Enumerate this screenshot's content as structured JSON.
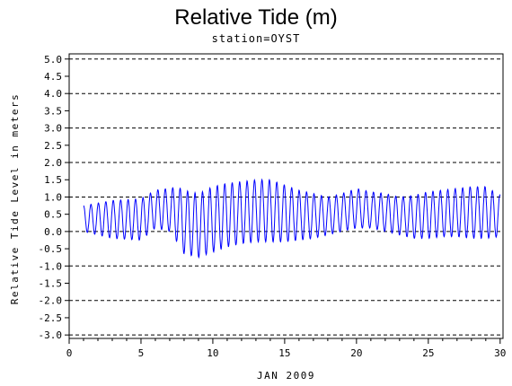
{
  "chart_data": {
    "type": "line",
    "title": "Relative Tide (m)",
    "subtitle": "station=OYST",
    "xlabel": "JAN 2009",
    "ylabel": "Relative Tide Level in meters",
    "xlim": [
      0,
      30.2
    ],
    "ylim": [
      -3.0,
      5.0
    ],
    "x_ticks": [
      0,
      5,
      10,
      15,
      20,
      25,
      30
    ],
    "y_ticks": [
      5.0,
      4.5,
      4.0,
      3.5,
      3.0,
      2.5,
      2.0,
      1.5,
      1.0,
      0.5,
      0.0,
      -0.5,
      -1.0,
      -1.5,
      -2.0,
      -2.5,
      -3.0
    ],
    "y_tick_labels": [
      "5.0",
      "4.5",
      "4.0",
      "3.5",
      "3.0",
      "2.5",
      "2.0",
      "1.5",
      "1.0",
      "0.5",
      "0.0",
      "-0.5",
      "-1.0",
      "-1.5",
      "-2.0",
      "-2.5",
      "-3.0"
    ],
    "gridlines_y": [
      -3.0,
      -2.0,
      -1.0,
      0.0,
      1.0,
      2.0,
      3.0,
      4.0,
      5.0
    ],
    "grid_style": "dashed",
    "series": [
      {
        "color": "#0000ff",
        "x_start": 1.0,
        "x_end": 30.0,
        "tidal_period_days": 0.5175,
        "envelope": {
          "x": [
            1.0,
            3.0,
            5.0,
            6.0,
            7.0,
            7.5,
            8.0,
            9.0,
            10.0,
            11.0,
            12.0,
            13.0,
            14.0,
            15.0,
            16.0,
            17.0,
            18.0,
            19.0,
            20.0,
            21.0,
            22.0,
            23.0,
            24.0,
            25.0,
            26.0,
            27.0,
            28.0,
            29.0,
            30.0
          ],
          "max": [
            0.75,
            0.9,
            0.95,
            1.2,
            1.25,
            1.3,
            1.2,
            1.1,
            1.3,
            1.4,
            1.45,
            1.5,
            1.5,
            1.35,
            1.2,
            1.1,
            1.0,
            1.1,
            1.25,
            1.15,
            1.1,
            1.0,
            1.05,
            1.15,
            1.2,
            1.25,
            1.3,
            1.3,
            1.05
          ],
          "min": [
            0.0,
            -0.2,
            -0.25,
            0.1,
            0.0,
            -0.3,
            -0.65,
            -0.75,
            -0.6,
            -0.45,
            -0.35,
            -0.3,
            -0.3,
            -0.3,
            -0.25,
            -0.2,
            -0.1,
            0.0,
            0.1,
            0.1,
            0.0,
            -0.1,
            -0.2,
            -0.2,
            -0.15,
            -0.15,
            -0.2,
            -0.2,
            -0.15
          ]
        }
      }
    ]
  }
}
